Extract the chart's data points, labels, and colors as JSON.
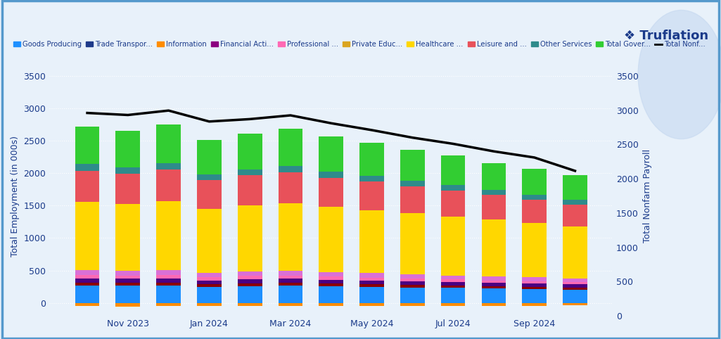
{
  "x_tick_labels": [
    "",
    "Nov 2023",
    "",
    "Jan 2024",
    "",
    "Mar 2024",
    "",
    "May 2024",
    "",
    "Jul 2024",
    "",
    "Sep 2024",
    ""
  ],
  "series_order": [
    "Goods Producing",
    "Trade Transpor...",
    "Information",
    "Financial Acti...",
    "Professional ...",
    "Private Educ...",
    "Healthcare ...",
    "Leisure and ...",
    "Other Services",
    "Total Gover..."
  ],
  "series": {
    "Goods Producing": [
      -50,
      -55,
      -50,
      -45,
      -50,
      -48,
      -45,
      -48,
      -50,
      -45,
      -43,
      -42,
      -40
    ],
    "Trade Transpor...": [
      270,
      265,
      270,
      250,
      260,
      265,
      255,
      248,
      240,
      232,
      222,
      215,
      208
    ],
    "Information": [
      45,
      43,
      45,
      40,
      43,
      43,
      41,
      39,
      37,
      36,
      34,
      33,
      32
    ],
    "Financial Acti...": [
      65,
      63,
      65,
      58,
      62,
      63,
      60,
      57,
      55,
      53,
      51,
      49,
      47
    ],
    "Professional ...": [
      55,
      53,
      55,
      50,
      53,
      54,
      51,
      48,
      46,
      44,
      42,
      40,
      39
    ],
    "Private Educ...": [
      75,
      73,
      75,
      68,
      72,
      73,
      70,
      66,
      63,
      60,
      58,
      56,
      54
    ],
    "Healthcare ...": [
      1050,
      1030,
      1060,
      980,
      1010,
      1040,
      1000,
      970,
      940,
      910,
      875,
      840,
      800
    ],
    "Leisure and ...": [
      480,
      470,
      490,
      450,
      465,
      475,
      455,
      440,
      420,
      400,
      380,
      360,
      340
    ],
    "Other Services": [
      100,
      97,
      100,
      90,
      95,
      97,
      93,
      89,
      85,
      82,
      78,
      75,
      72
    ],
    "Total Gover...": [
      580,
      560,
      590,
      530,
      550,
      580,
      540,
      510,
      480,
      455,
      420,
      395,
      375
    ]
  },
  "line_series": [
    2960,
    2930,
    2995,
    2835,
    2870,
    2925,
    2810,
    2710,
    2600,
    2510,
    2400,
    2310,
    2115
  ],
  "colors": {
    "Goods Producing": "#FF8C00",
    "Trade Transpor...": "#1E90FF",
    "Information": "#8B0000",
    "Financial Acti...": "#4B0082",
    "Professional ...": "#FF69B4",
    "Private Educ...": "#DA70D6",
    "Healthcare ...": "#FFD700",
    "Leisure and ...": "#E8515A",
    "Other Services": "#2E8B8B",
    "Total Gover...": "#32CD32"
  },
  "background_color": "#E8F1FA",
  "ylabel_left": "Total Employment (in 000s)",
  "ylabel_right": "Total Nonfarm Payroll",
  "ylim_left": [
    -200,
    3500
  ],
  "ylim_right": [
    0,
    3500
  ],
  "yticks": [
    0,
    500,
    1000,
    1500,
    2000,
    2500,
    3000,
    3500
  ],
  "title_text": "❖ Truflation",
  "legend_labels": [
    "Goods Producing",
    "Trade Transpor...",
    "Information",
    "Financial Acti...",
    "Professional ...",
    "Private Educ...",
    "Healthcare ...",
    "Leisure and ...",
    "Other Services",
    "Total Gover...",
    "Total Nonf..."
  ],
  "legend_colors": [
    "#1E90FF",
    "#1E3A8A",
    "#FF8C00",
    "#8B0080",
    "#FF69B4",
    "#DAA520",
    "#FFD700",
    "#E8515A",
    "#2E8B8B",
    "#32CD32",
    "#000000"
  ],
  "bar_width": 0.6,
  "tick_color": "#1a3a8a",
  "label_color": "#1a3a8a"
}
